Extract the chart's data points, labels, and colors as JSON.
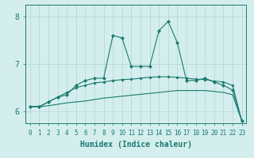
{
  "xlabel": "Humidex (Indice chaleur)",
  "bg_color": "#d4eeee",
  "line_color": "#1a7a6e",
  "grid_color": "#b8d8d8",
  "xlim": [
    -0.5,
    23.5
  ],
  "ylim": [
    5.75,
    8.25
  ],
  "yticks": [
    6,
    7,
    8
  ],
  "xticks": [
    0,
    1,
    2,
    3,
    4,
    5,
    6,
    7,
    8,
    9,
    10,
    11,
    12,
    13,
    14,
    15,
    16,
    17,
    18,
    19,
    20,
    21,
    22,
    23
  ],
  "series": [
    [
      6.1,
      6.1,
      6.2,
      6.3,
      6.35,
      6.55,
      6.65,
      6.7,
      6.7,
      7.6,
      7.55,
      6.95,
      6.95,
      6.95,
      7.7,
      7.9,
      7.45,
      6.65,
      6.65,
      6.7,
      6.62,
      6.55,
      6.45,
      5.8
    ],
    [
      6.1,
      6.1,
      6.2,
      6.3,
      6.4,
      6.5,
      6.55,
      6.6,
      6.62,
      6.65,
      6.67,
      6.68,
      6.7,
      6.72,
      6.73,
      6.73,
      6.72,
      6.7,
      6.68,
      6.67,
      6.64,
      6.62,
      6.55,
      5.8
    ],
    [
      6.1,
      6.1,
      6.12,
      6.15,
      6.18,
      6.2,
      6.22,
      6.25,
      6.28,
      6.3,
      6.32,
      6.34,
      6.36,
      6.38,
      6.4,
      6.42,
      6.44,
      6.44,
      6.44,
      6.44,
      6.42,
      6.4,
      6.35,
      5.8
    ]
  ]
}
